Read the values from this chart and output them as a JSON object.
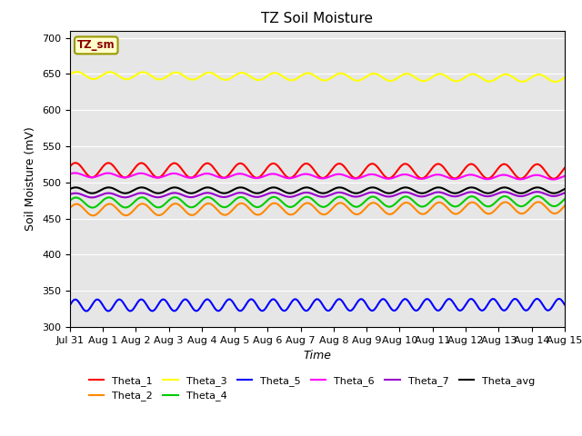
{
  "title": "TZ Soil Moisture",
  "xlabel": "Time",
  "ylabel": "Soil Moisture (mV)",
  "ylim": [
    300,
    710
  ],
  "yticks": [
    300,
    350,
    400,
    450,
    500,
    550,
    600,
    650,
    700
  ],
  "bg_color": "#e6e6e6",
  "fig_color": "#ffffff",
  "legend_box_label": "TZ_sm",
  "series": [
    {
      "name": "Theta_1",
      "color": "#ff0000",
      "base": 517,
      "amplitude": 10,
      "freq": 1.0,
      "trend": -2,
      "phase": 0.5
    },
    {
      "name": "Theta_2",
      "color": "#ff8800",
      "base": 462,
      "amplitude": 8,
      "freq": 1.0,
      "trend": 3,
      "phase": 0.3
    },
    {
      "name": "Theta_3",
      "color": "#ffff00",
      "base": 648,
      "amplitude": 5,
      "freq": 1.0,
      "trend": -4,
      "phase": 0.2
    },
    {
      "name": "Theta_4",
      "color": "#00cc00",
      "base": 472,
      "amplitude": 7,
      "freq": 1.0,
      "trend": 2,
      "phase": 0.4
    },
    {
      "name": "Theta_5",
      "color": "#0000ff",
      "base": 330,
      "amplitude": 8,
      "freq": 1.5,
      "trend": 1,
      "phase": 0.0
    },
    {
      "name": "Theta_6",
      "color": "#ff00ff",
      "base": 510,
      "amplitude": 3,
      "freq": 1.0,
      "trend": -3,
      "phase": 0.6
    },
    {
      "name": "Theta_7",
      "color": "#9900cc",
      "base": 482,
      "amplitude": 3,
      "freq": 1.0,
      "trend": 2,
      "phase": 0.5
    },
    {
      "name": "Theta_avg",
      "color": "#000000",
      "base": 489,
      "amplitude": 4,
      "freq": 1.0,
      "trend": 0,
      "phase": 0.45
    }
  ],
  "xtick_labels": [
    "Jul 31",
    "Aug 1",
    "Aug 2",
    "Aug 3",
    "Aug 4",
    "Aug 5",
    "Aug 6",
    "Aug 7",
    "Aug 8",
    "Aug 9",
    "Aug 10",
    "Aug 11",
    "Aug 12",
    "Aug 13",
    "Aug 14",
    "Aug 15"
  ],
  "num_days": 15,
  "points_per_day": 96
}
